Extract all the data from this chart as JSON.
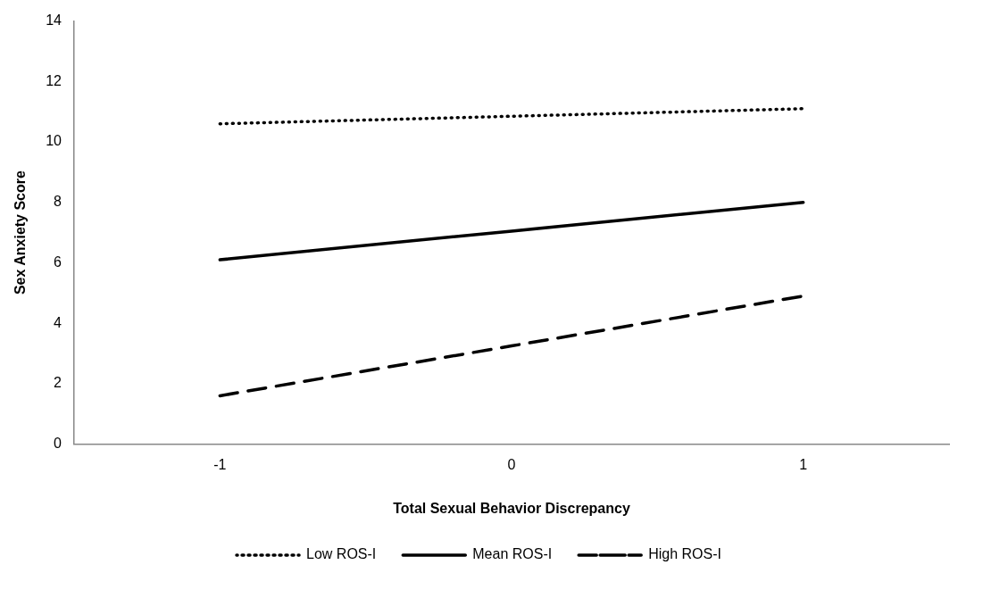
{
  "chart_data": {
    "type": "line",
    "xlabel": "Total Sexual Behavior Discrepancy",
    "ylabel": "Sex Anxiety Score",
    "categories": [
      "-1",
      "0",
      "1"
    ],
    "series": [
      {
        "name": "Low ROS-I",
        "color": "#000000",
        "line_style": "dotted",
        "values": [
          10.6,
          10.85,
          11.1
        ]
      },
      {
        "name": "Mean ROS-I",
        "color": "#000000",
        "line_style": "solid",
        "values": [
          6.1,
          7.05,
          8.0
        ]
      },
      {
        "name": "High ROS-I",
        "color": "#000000",
        "line_style": "dashed",
        "values": [
          1.6,
          3.25,
          4.9
        ]
      }
    ],
    "ylim": [
      0,
      14
    ],
    "yticks": [
      0,
      2,
      4,
      6,
      8,
      10,
      12,
      14
    ],
    "grid": false,
    "legend": "bottom",
    "marker": "none"
  }
}
